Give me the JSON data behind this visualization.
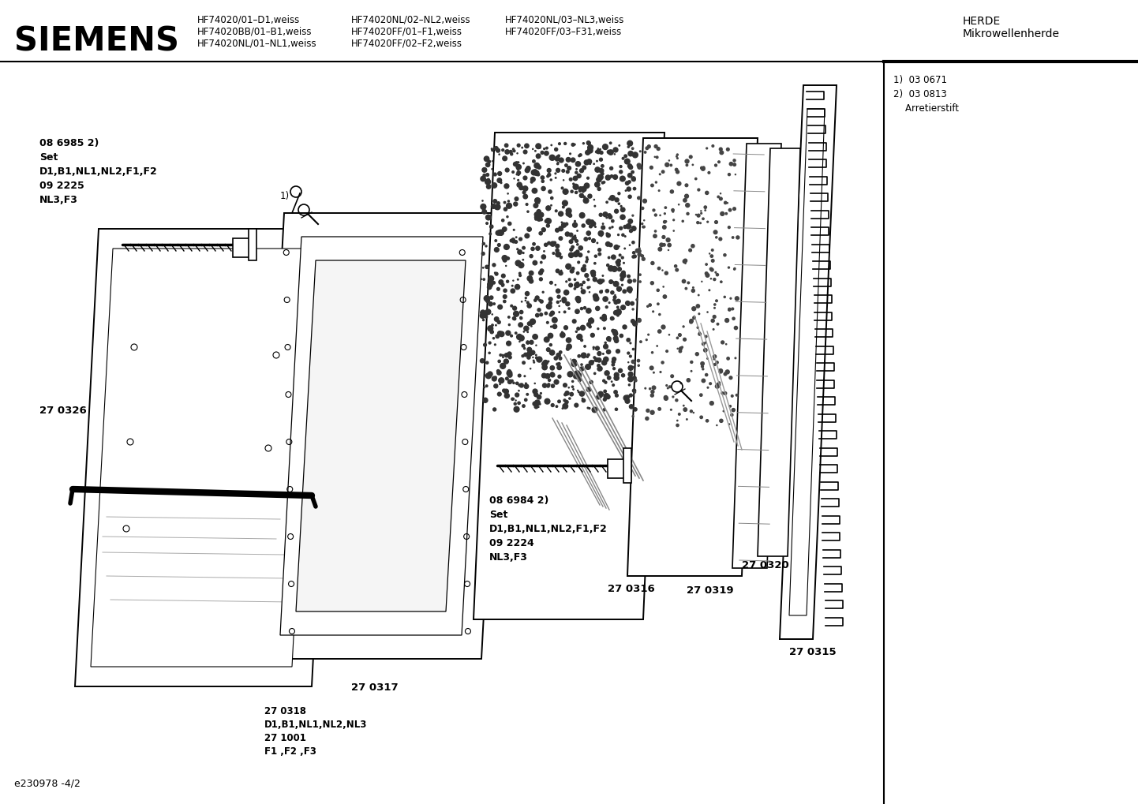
{
  "title": "SIEMENS",
  "model_col1": [
    "HF74020/01–D1,weiss",
    "HF74020BB/01–B1,weiss",
    "HF74020NL/01–NL1,weiss"
  ],
  "model_col2": [
    "HF74020NL/02–NL2,weiss",
    "HF74020FF/01–F1,weiss",
    "HF74020FF/02–F2,weiss"
  ],
  "model_col3": [
    "HF74020NL/03–NL3,weiss",
    "HF74020FF/03–F31,weiss"
  ],
  "category_line1": "HERDE",
  "category_line2": "Mikrowellenherde",
  "footnote_bottom": "e230978 -4/2",
  "footnote_right": "1)  03 0671\n2)  03 0813\n    Arretierstift",
  "label_086985": "08 6985 ²)",
  "label_086984": "08 6984 ²)",
  "bg_color": "#ffffff",
  "lc": "#000000"
}
